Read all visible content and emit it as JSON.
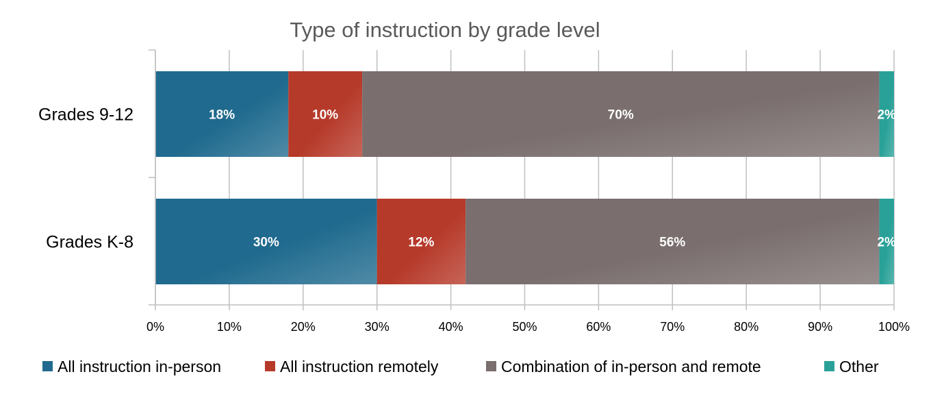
{
  "chart_data": {
    "type": "bar",
    "orientation": "horizontal",
    "stacked": "percent",
    "title": "Type of instruction by grade level",
    "categories": [
      "Grades 9-12",
      "Grades K-8"
    ],
    "series": [
      {
        "name": "All instruction in-person",
        "color": "#1F6A8E",
        "values": [
          18,
          30
        ],
        "labels": [
          "18%",
          "30%"
        ]
      },
      {
        "name": "All instruction remotely",
        "color": "#B63A2A",
        "values": [
          10,
          12
        ],
        "labels": [
          "10%",
          "12%"
        ]
      },
      {
        "name": "Combination of in-person and remote",
        "color": "#7A6E6E",
        "values": [
          70,
          56
        ],
        "labels": [
          "70%",
          "56%"
        ]
      },
      {
        "name": "Other",
        "color": "#2AA198",
        "values": [
          2,
          2
        ],
        "labels": [
          "2%",
          "2%"
        ]
      }
    ],
    "xlim": [
      0,
      100
    ],
    "x_ticks": [
      "0%",
      "10%",
      "20%",
      "30%",
      "40%",
      "50%",
      "60%",
      "70%",
      "80%",
      "90%",
      "100%"
    ],
    "grid": true,
    "legend": "bottom"
  }
}
